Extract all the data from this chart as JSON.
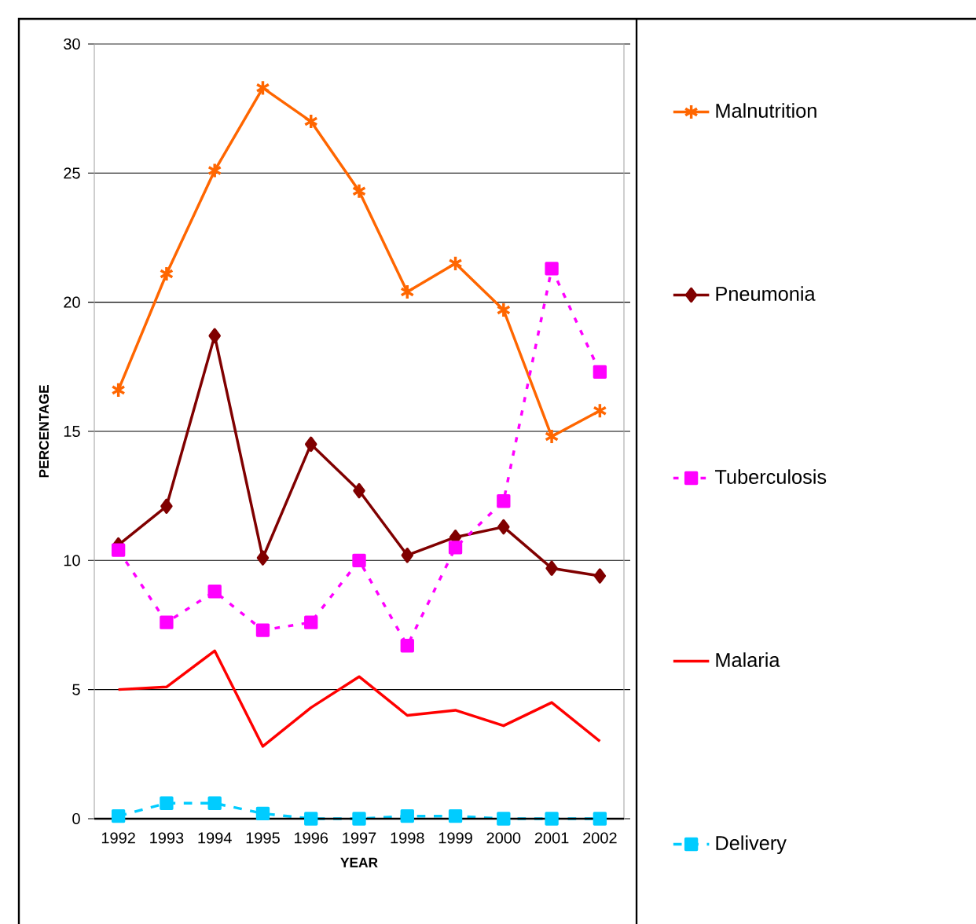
{
  "chart_data": {
    "type": "line",
    "xlabel": "YEAR",
    "ylabel": "PERCENTAGE",
    "categories": [
      "1992",
      "1993",
      "1994",
      "1995",
      "1996",
      "1997",
      "1998",
      "1999",
      "2000",
      "2001",
      "2002"
    ],
    "ylim": [
      0,
      30
    ],
    "yticks": [
      0,
      5,
      10,
      15,
      20,
      25,
      30
    ],
    "grid": "y",
    "legend": "right",
    "series": [
      {
        "name": "Malnutrition",
        "color": "#ff6600",
        "marker": "cross",
        "line_style": "solid",
        "values": [
          16.6,
          21.1,
          25.1,
          28.3,
          27.0,
          24.3,
          20.4,
          21.5,
          19.7,
          14.8,
          15.8
        ]
      },
      {
        "name": "Pneumonia",
        "color": "#800000",
        "marker": "diamond",
        "line_style": "solid",
        "values": [
          10.6,
          12.1,
          18.7,
          10.1,
          14.5,
          12.7,
          10.2,
          10.9,
          11.3,
          9.7,
          9.4
        ]
      },
      {
        "name": "Tuberculosis",
        "color": "#ff00ff",
        "marker": "square",
        "line_style": "dotted",
        "values": [
          10.4,
          7.6,
          8.8,
          7.3,
          7.6,
          10.0,
          6.7,
          10.5,
          12.3,
          21.3,
          17.3
        ]
      },
      {
        "name": "Malaria",
        "color": "#ff0000",
        "marker": "none",
        "line_style": "solid",
        "values": [
          5.0,
          5.1,
          6.5,
          2.8,
          4.3,
          5.5,
          4.0,
          4.2,
          3.6,
          4.5,
          3.0
        ]
      },
      {
        "name": "Delivery",
        "color": "#00ccff",
        "marker": "square",
        "line_style": "dashed",
        "values": [
          0.1,
          0.6,
          0.6,
          0.2,
          0.0,
          0.0,
          0.1,
          0.1,
          0.0,
          0.0,
          0.0
        ]
      }
    ]
  }
}
